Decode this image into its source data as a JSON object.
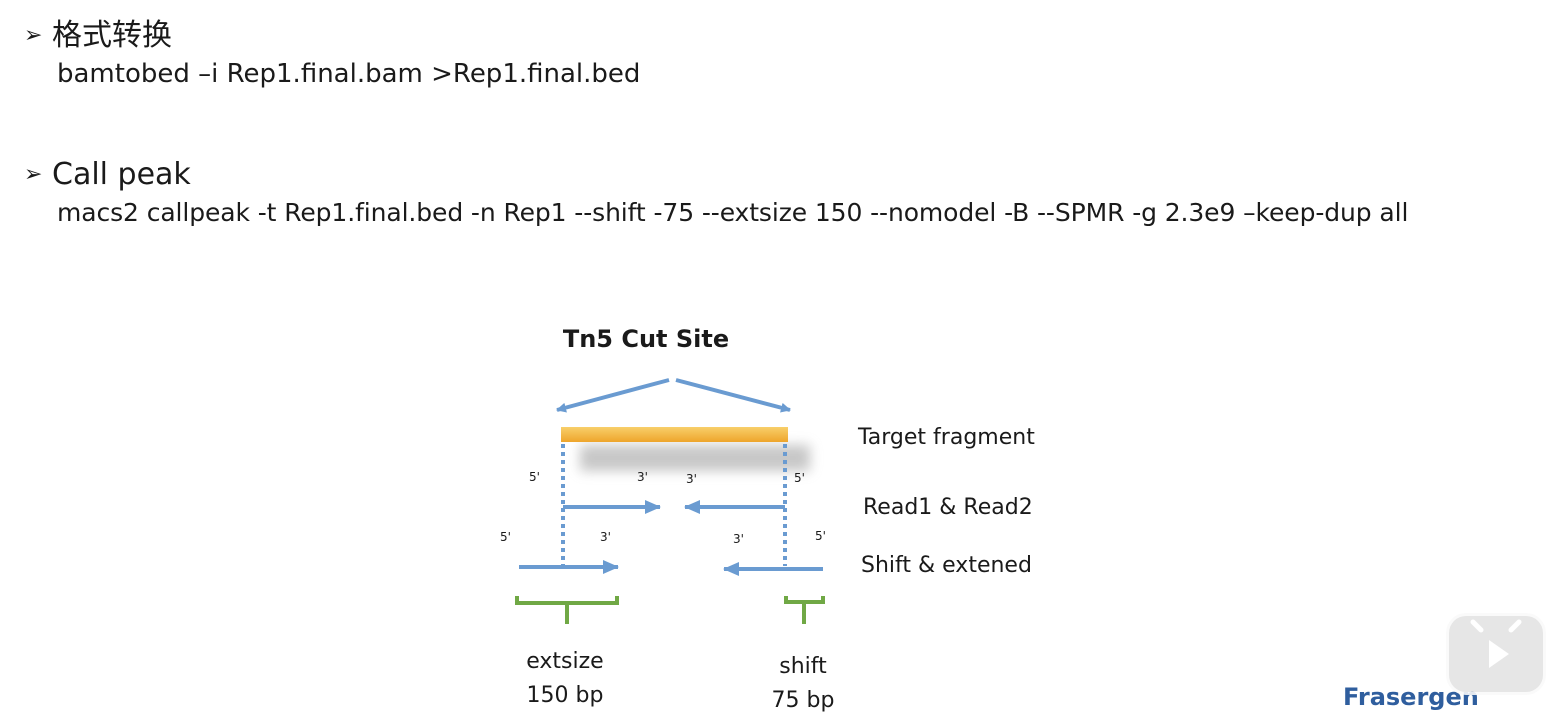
{
  "bullets": [
    {
      "marker": "➢",
      "title": "格式转换",
      "command": "bamtobed –i Rep1.final.bam >Rep1.final.bed"
    },
    {
      "marker": "➢",
      "title": "Call peak",
      "command": "macs2 callpeak -t Rep1.final.bed -n Rep1 --shift -75 --extsize 150 --nomodel -B --SPMR -g 2.3e9 –keep-dup all"
    }
  ],
  "diagram": {
    "title": "Tn5 Cut Site",
    "row_labels": {
      "target": "Target fragment",
      "reads": "Read1 & Read2",
      "shift": "Shift & extened"
    },
    "primes": {
      "five": "5'",
      "three": "3'"
    },
    "footer": {
      "extsize_label": "extsize",
      "extsize_value": "150 bp",
      "shift_label": "shift",
      "shift_value": "75 bp"
    },
    "colors": {
      "arrow": "#6a9bd1",
      "fragment": "#f2b43c",
      "bracket": "#70a845"
    }
  },
  "brand": "Frasergen"
}
